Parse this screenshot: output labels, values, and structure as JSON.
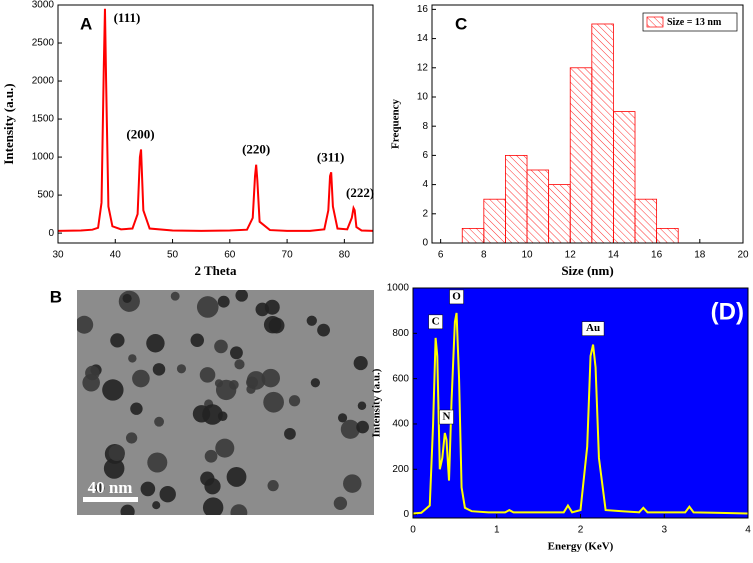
{
  "chart_data": [
    {
      "type": "line",
      "label": "A",
      "xlabel": "2 Theta",
      "ylabel": "Intensity (a.u.)",
      "color": "#ff0000",
      "x": [
        30,
        34,
        36,
        37,
        37.6,
        38.0,
        38.2,
        38.4,
        38.8,
        39.5,
        41,
        43,
        43.9,
        44.3,
        44.5,
        44.9,
        46,
        50,
        55,
        60,
        63,
        64.0,
        64.4,
        64.6,
        64.8,
        65.2,
        67,
        70,
        74,
        76.5,
        77.2,
        77.5,
        77.7,
        78.0,
        78.8,
        80.5,
        81.3,
        81.6,
        81.8,
        82.1,
        83,
        85
      ],
      "series": [
        {
          "name": null,
          "color": "#ff0000",
          "values": [
            30,
            35,
            45,
            70,
            400,
            2200,
            2950,
            2000,
            350,
            90,
            50,
            60,
            250,
            1000,
            1100,
            300,
            60,
            35,
            30,
            35,
            45,
            200,
            750,
            900,
            700,
            150,
            40,
            30,
            30,
            50,
            300,
            750,
            800,
            350,
            60,
            50,
            200,
            330,
            300,
            80,
            35,
            30
          ]
        }
      ],
      "annotations": [
        "(111)",
        "(200)",
        "(220)",
        "(311)",
        "(222)"
      ],
      "xlim": [
        30,
        85
      ],
      "xticks": [
        30,
        40,
        50,
        60,
        70,
        80
      ],
      "ylim": [
        -130,
        3000
      ],
      "yticks": [
        0,
        500,
        1000,
        1500,
        2000,
        2500,
        3000
      ]
    },
    {
      "type": "histogram",
      "label": "C",
      "xlabel": "Size (nm)",
      "ylabel": "Frequency",
      "color": "#ff0000",
      "legend": "Size = 13 nm",
      "legend_position": "upper right",
      "bins": [
        7,
        8,
        9,
        10,
        11,
        12,
        13,
        14,
        15,
        16,
        17
      ],
      "values": [
        1,
        3,
        6,
        5,
        4,
        12,
        15,
        9,
        3,
        1
      ],
      "xlim": [
        5.6,
        20
      ],
      "xticks": [
        6,
        8,
        10,
        12,
        14,
        16,
        18,
        20
      ],
      "ylim": [
        0,
        16.3
      ],
      "yticks": [
        0,
        2,
        4,
        6,
        8,
        10,
        12,
        14,
        16
      ]
    },
    {
      "type": "line",
      "label": "(D)",
      "xlabel": "Energy (KeV)",
      "ylabel": "Intensity (a.u.)",
      "color": "#ffff00",
      "background": "#0000ff",
      "x": [
        0,
        0.1,
        0.2,
        0.24,
        0.27,
        0.29,
        0.32,
        0.35,
        0.38,
        0.4,
        0.43,
        0.46,
        0.5,
        0.52,
        0.55,
        0.58,
        0.62,
        0.7,
        0.9,
        1.1,
        1.15,
        1.2,
        1.5,
        1.8,
        1.85,
        1.9,
        2.0,
        2.08,
        2.12,
        2.15,
        2.18,
        2.22,
        2.3,
        2.5,
        2.7,
        2.75,
        2.8,
        3.0,
        3.25,
        3.3,
        3.35,
        3.6,
        4.0
      ],
      "series": [
        {
          "name": null,
          "color": "#ffff00",
          "values": [
            5,
            8,
            40,
            400,
            780,
            700,
            200,
            250,
            360,
            330,
            150,
            500,
            850,
            890,
            600,
            120,
            30,
            15,
            10,
            10,
            20,
            10,
            10,
            10,
            40,
            10,
            20,
            300,
            700,
            750,
            650,
            250,
            20,
            15,
            10,
            30,
            10,
            10,
            10,
            35,
            10,
            8,
            5
          ]
        }
      ],
      "annotations": [
        "C",
        "N",
        "O",
        "Au"
      ],
      "xlim": [
        0,
        4
      ],
      "xticks": [
        0,
        1,
        2,
        3,
        4
      ],
      "ylim": [
        -15,
        1000
      ],
      "yticks": [
        0,
        200,
        400,
        600,
        800,
        1000
      ]
    }
  ],
  "image_panel": {
    "label": "B",
    "scale_bar": "40 nm"
  }
}
